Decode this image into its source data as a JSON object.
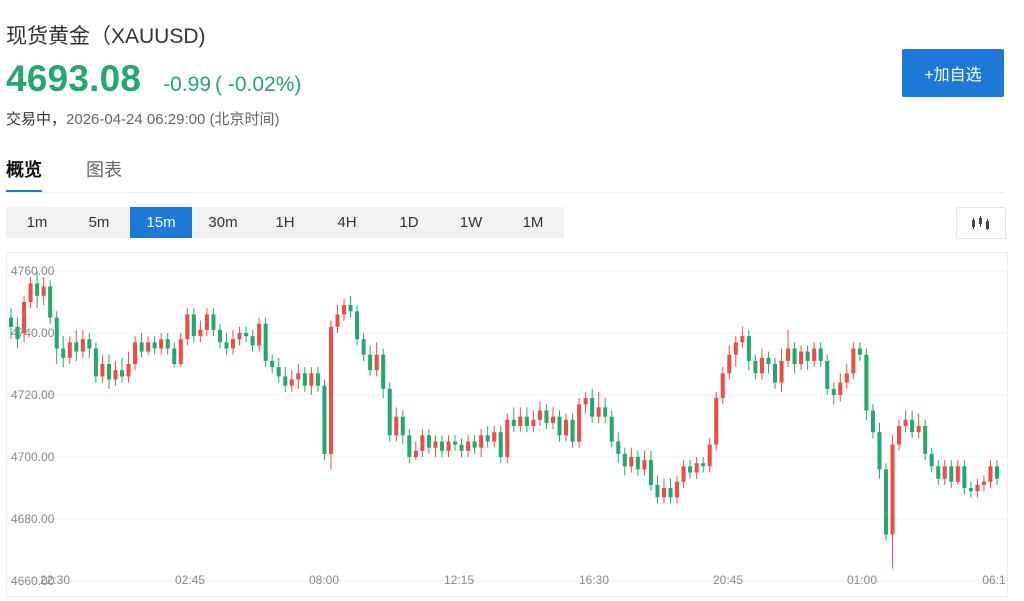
{
  "header": {
    "title": "现货黄金（XAUUSD)",
    "price": "4693.08",
    "change": "-0.99",
    "change_pct": "( -0.02%)",
    "status": "交易中，",
    "timestamp": "2026-04-24 06:29:00",
    "timezone": "(北京时间)",
    "add_button": "+加自选"
  },
  "tabs": [
    {
      "label": "概览",
      "active": true
    },
    {
      "label": "图表",
      "active": false
    }
  ],
  "periods": [
    {
      "label": "1m",
      "active": false
    },
    {
      "label": "5m",
      "active": false
    },
    {
      "label": "15m",
      "active": true
    },
    {
      "label": "30m",
      "active": false
    },
    {
      "label": "1H",
      "active": false
    },
    {
      "label": "4H",
      "active": false
    },
    {
      "label": "1D",
      "active": false
    },
    {
      "label": "1W",
      "active": false
    },
    {
      "label": "1M",
      "active": false
    }
  ],
  "chart_type_icon": "candlestick-icon",
  "colors": {
    "up": "#ef4b4b",
    "down": "#23a96b",
    "accent": "#1d78d6"
  },
  "chart_data": {
    "type": "candlestick",
    "y_ticks": [
      "4760.00",
      "4740.00",
      "4720.00",
      "4700.00",
      "4680.00",
      "4660.00"
    ],
    "y_values": [
      4760,
      4740,
      4720,
      4700,
      4680,
      4660
    ],
    "ylim": [
      4660,
      4760
    ],
    "x_ticks": [
      "22:30",
      "02:45",
      "08:00",
      "12:15",
      "16:30",
      "20:45",
      "01:00",
      "06:1"
    ],
    "grid": true,
    "candles": [
      [
        4745,
        4742,
        4748,
        4738
      ],
      [
        4742,
        4738,
        4745,
        4735
      ],
      [
        4740,
        4750,
        4752,
        4737
      ],
      [
        4750,
        4756,
        4758,
        4748
      ],
      [
        4756,
        4752,
        4760,
        4748
      ],
      [
        4752,
        4755,
        4758,
        4749
      ],
      [
        4755,
        4745,
        4757,
        4743
      ],
      [
        4745,
        4735,
        4747,
        4730
      ],
      [
        4735,
        4732,
        4739,
        4729
      ],
      [
        4732,
        4737,
        4739,
        4730
      ],
      [
        4737,
        4734,
        4741,
        4731
      ],
      [
        4734,
        4738,
        4741,
        4732
      ],
      [
        4738,
        4735,
        4740,
        4732
      ],
      [
        4735,
        4726,
        4737,
        4724
      ],
      [
        4726,
        4730,
        4733,
        4724
      ],
      [
        4730,
        4725,
        4733,
        4722
      ],
      [
        4725,
        4728,
        4731,
        4723
      ],
      [
        4728,
        4726,
        4732,
        4724
      ],
      [
        4726,
        4730,
        4734,
        4724
      ],
      [
        4730,
        4737,
        4739,
        4728
      ],
      [
        4737,
        4734,
        4740,
        4732
      ],
      [
        4734,
        4737,
        4739,
        4733
      ],
      [
        4737,
        4735,
        4739,
        4733
      ],
      [
        4735,
        4738,
        4740,
        4733
      ],
      [
        4738,
        4735,
        4740,
        4733
      ],
      [
        4735,
        4730,
        4737,
        4729
      ],
      [
        4730,
        4738,
        4740,
        4729
      ],
      [
        4738,
        4746,
        4748,
        4736
      ],
      [
        4746,
        4739,
        4748,
        4737
      ],
      [
        4739,
        4741,
        4744,
        4737
      ],
      [
        4741,
        4746,
        4748,
        4739
      ],
      [
        4746,
        4741,
        4748,
        4739
      ],
      [
        4741,
        4737,
        4743,
        4735
      ],
      [
        4737,
        4735,
        4740,
        4733
      ],
      [
        4735,
        4738,
        4741,
        4733
      ],
      [
        4738,
        4740,
        4742,
        4736
      ],
      [
        4740,
        4739,
        4742,
        4737
      ],
      [
        4739,
        4736,
        4741,
        4734
      ],
      [
        4736,
        4743,
        4745,
        4734
      ],
      [
        4743,
        4731,
        4745,
        4729
      ],
      [
        4731,
        4729,
        4733,
        4727
      ],
      [
        4729,
        4726,
        4732,
        4724
      ],
      [
        4726,
        4723,
        4729,
        4721
      ],
      [
        4723,
        4725,
        4728,
        4721
      ],
      [
        4725,
        4727,
        4730,
        4722
      ],
      [
        4727,
        4723,
        4729,
        4721
      ],
      [
        4723,
        4727,
        4729,
        4720
      ],
      [
        4727,
        4723,
        4729,
        4721
      ],
      [
        4723,
        4701,
        4725,
        4699
      ],
      [
        4701,
        4742,
        4744,
        4696
      ],
      [
        4742,
        4746,
        4749,
        4740
      ],
      [
        4746,
        4749,
        4751,
        4744
      ],
      [
        4749,
        4747,
        4752,
        4745
      ],
      [
        4747,
        4738,
        4749,
        4736
      ],
      [
        4738,
        4733,
        4740,
        4731
      ],
      [
        4733,
        4728,
        4736,
        4726
      ],
      [
        4728,
        4733,
        4737,
        4726
      ],
      [
        4733,
        4722,
        4735,
        4719
      ],
      [
        4722,
        4707,
        4724,
        4705
      ],
      [
        4707,
        4713,
        4716,
        4705
      ],
      [
        4713,
        4707,
        4715,
        4704
      ],
      [
        4707,
        4700,
        4709,
        4698
      ],
      [
        4700,
        4702,
        4705,
        4699
      ],
      [
        4702,
        4707,
        4709,
        4700
      ],
      [
        4707,
        4703,
        4709,
        4701
      ],
      [
        4703,
        4705,
        4707,
        4700
      ],
      [
        4705,
        4702,
        4707,
        4700
      ],
      [
        4702,
        4705,
        4707,
        4700
      ],
      [
        4705,
        4704,
        4707,
        4702
      ],
      [
        4704,
        4702,
        4706,
        4700
      ],
      [
        4702,
        4705,
        4707,
        4700
      ],
      [
        4705,
        4703,
        4707,
        4701
      ],
      [
        4703,
        4707,
        4709,
        4700
      ],
      [
        4707,
        4705,
        4710,
        4703
      ],
      [
        4705,
        4708,
        4710,
        4703
      ],
      [
        4708,
        4700,
        4710,
        4698
      ],
      [
        4700,
        4712,
        4714,
        4698
      ],
      [
        4712,
        4710,
        4716,
        4708
      ],
      [
        4710,
        4713,
        4716,
        4708
      ],
      [
        4713,
        4710,
        4716,
        4708
      ],
      [
        4710,
        4712,
        4715,
        4708
      ],
      [
        4712,
        4715,
        4718,
        4710
      ],
      [
        4715,
        4711,
        4717,
        4709
      ],
      [
        4711,
        4713,
        4716,
        4709
      ],
      [
        4713,
        4707,
        4715,
        4705
      ],
      [
        4707,
        4712,
        4714,
        4705
      ],
      [
        4712,
        4705,
        4714,
        4703
      ],
      [
        4705,
        4717,
        4719,
        4703
      ],
      [
        4717,
        4719,
        4721,
        4714
      ],
      [
        4719,
        4713,
        4722,
        4711
      ],
      [
        4713,
        4716,
        4721,
        4711
      ],
      [
        4716,
        4713,
        4719,
        4711
      ],
      [
        4713,
        4705,
        4715,
        4703
      ],
      [
        4705,
        4701,
        4708,
        4698
      ],
      [
        4701,
        4697,
        4703,
        4694
      ],
      [
        4697,
        4700,
        4703,
        4695
      ],
      [
        4700,
        4696,
        4702,
        4694
      ],
      [
        4696,
        4699,
        4702,
        4694
      ],
      [
        4699,
        4691,
        4702,
        4689
      ],
      [
        4691,
        4687,
        4694,
        4685
      ],
      [
        4687,
        4690,
        4693,
        4685
      ],
      [
        4690,
        4687,
        4693,
        4685
      ],
      [
        4687,
        4692,
        4694,
        4685
      ],
      [
        4692,
        4697,
        4699,
        4690
      ],
      [
        4697,
        4695,
        4699,
        4693
      ],
      [
        4695,
        4698,
        4700,
        4693
      ],
      [
        4698,
        4697,
        4700,
        4695
      ],
      [
        4697,
        4704,
        4706,
        4695
      ],
      [
        4704,
        4719,
        4721,
        4702
      ],
      [
        4719,
        4727,
        4729,
        4717
      ],
      [
        4727,
        4733,
        4736,
        4725
      ],
      [
        4733,
        4737,
        4739,
        4729
      ],
      [
        4737,
        4739,
        4742,
        4735
      ],
      [
        4739,
        4731,
        4741,
        4728
      ],
      [
        4731,
        4727,
        4733,
        4725
      ],
      [
        4727,
        4732,
        4735,
        4725
      ],
      [
        4732,
        4730,
        4734,
        4727
      ],
      [
        4730,
        4724,
        4732,
        4722
      ],
      [
        4724,
        4731,
        4735,
        4721
      ],
      [
        4731,
        4735,
        4741,
        4729
      ],
      [
        4735,
        4730,
        4737,
        4727
      ],
      [
        4730,
        4734,
        4736,
        4728
      ],
      [
        4734,
        4731,
        4736,
        4728
      ],
      [
        4731,
        4735,
        4737,
        4729
      ],
      [
        4735,
        4731,
        4737,
        4729
      ],
      [
        4731,
        4722,
        4733,
        4720
      ],
      [
        4722,
        4720,
        4724,
        4717
      ],
      [
        4720,
        4724,
        4727,
        4718
      ],
      [
        4724,
        4727,
        4730,
        4722
      ],
      [
        4727,
        4735,
        4737,
        4725
      ],
      [
        4735,
        4733,
        4737,
        4731
      ],
      [
        4733,
        4715,
        4735,
        4712
      ],
      [
        4715,
        4708,
        4717,
        4706
      ],
      [
        4708,
        4696,
        4711,
        4693
      ],
      [
        4696,
        4675,
        4698,
        4673
      ],
      [
        4675,
        4704,
        4707,
        4664
      ],
      [
        4704,
        4710,
        4712,
        4702
      ],
      [
        4710,
        4712,
        4715,
        4708
      ],
      [
        4712,
        4708,
        4715,
        4706
      ],
      [
        4708,
        4710,
        4714,
        4706
      ],
      [
        4710,
        4701,
        4712,
        4699
      ],
      [
        4701,
        4697,
        4703,
        4695
      ],
      [
        4697,
        4693,
        4699,
        4691
      ],
      [
        4693,
        4697,
        4699,
        4691
      ],
      [
        4697,
        4692,
        4699,
        4690
      ],
      [
        4692,
        4697,
        4699,
        4691
      ],
      [
        4697,
        4690,
        4699,
        4688
      ],
      [
        4690,
        4689,
        4692,
        4687
      ],
      [
        4689,
        4691,
        4693,
        4687
      ],
      [
        4691,
        4692,
        4694,
        4689
      ],
      [
        4692,
        4697,
        4699,
        4690
      ],
      [
        4697,
        4693,
        4699,
        4691
      ]
    ]
  }
}
